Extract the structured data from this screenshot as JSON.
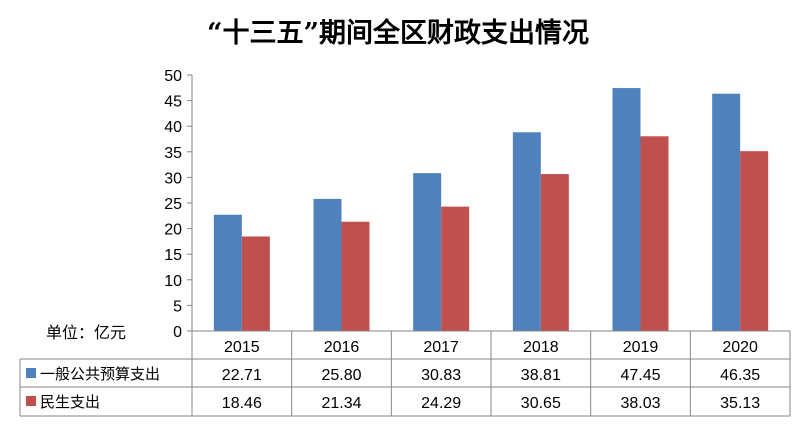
{
  "chart_data": {
    "type": "bar",
    "title": "“十三五”期间全区财政支出情况",
    "unit_label": "单位：亿元",
    "categories": [
      "2015",
      "2016",
      "2017",
      "2018",
      "2019",
      "2020"
    ],
    "series": [
      {
        "name": "一般公共预算支出",
        "color": "#4F81BD",
        "values": [
          22.71,
          25.8,
          30.83,
          38.81,
          47.45,
          46.35
        ]
      },
      {
        "name": "民生支出",
        "color": "#C0504D",
        "values": [
          18.46,
          21.34,
          24.29,
          30.65,
          38.03,
          35.13
        ]
      }
    ],
    "ylim": [
      0,
      50
    ],
    "yticks": [
      0,
      5,
      10,
      15,
      20,
      25,
      30,
      35,
      40,
      45,
      50
    ],
    "grid": false,
    "legend": "data-table-below"
  }
}
